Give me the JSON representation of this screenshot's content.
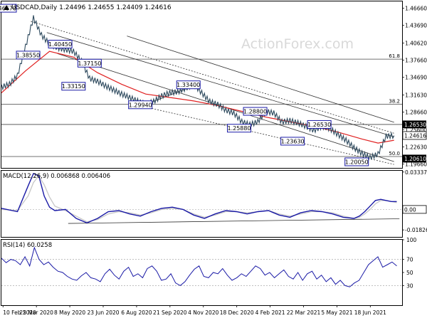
{
  "chart_data": {
    "type": "line",
    "title": "USDCAD,Daily",
    "ohlc": {
      "open": "1.24496",
      "high": "1.24655",
      "low": "1.24409",
      "close": "1.24616"
    },
    "watermark": "ActionForex.com",
    "price_panel": {
      "ylim": [
        1.19,
        1.4785
      ],
      "ticks": [
        "1.46660",
        "1.43690",
        "1.40620",
        "1.37660",
        "1.34690",
        "1.31630",
        "1.28660",
        "1.25600",
        "1.22630",
        "1.19660"
      ],
      "current_price": "1.24616",
      "highlighted_levels": [
        "1.26530",
        "1.20610"
      ],
      "fib_levels": [
        {
          "label": "61.8",
          "value": 1.3785
        },
        {
          "label": "38.2",
          "value": 1.3005
        },
        {
          "label": "50.0",
          "value": 1.2097
        }
      ],
      "horizontal_level": 1.2653,
      "annotations": [
        {
          "label": "1.46670",
          "x": 0.6,
          "y": 1.4667
        },
        {
          "label": "1.38550",
          "x": 5.0,
          "y": 1.3855
        },
        {
          "label": "1.40450",
          "x": 11.0,
          "y": 1.4045
        },
        {
          "label": "1.37150",
          "x": 16.5,
          "y": 1.3715
        },
        {
          "label": "1.33150",
          "x": 13.5,
          "y": 1.3315
        },
        {
          "label": "1.33400",
          "x": 35.0,
          "y": 1.334
        },
        {
          "label": "1.29940",
          "x": 26.0,
          "y": 1.2994
        },
        {
          "label": "1.28800",
          "x": 47.5,
          "y": 1.288
        },
        {
          "label": "1.25880",
          "x": 44.5,
          "y": 1.2588
        },
        {
          "label": "1.26530",
          "x": 59.5,
          "y": 1.2653
        },
        {
          "label": "1.23630",
          "x": 54.5,
          "y": 1.2363
        },
        {
          "label": "1.20050",
          "x": 66.5,
          "y": 1.2005
        }
      ]
    },
    "x_axis": {
      "labels": [
        "10 Feb 2020",
        "25 Mar 2020",
        "8 May 2020",
        "23 Jun 2020",
        "6 Aug 2020",
        "21 Sep 2020",
        "4 Nov 2020",
        "18 Dec 2020",
        "4 Feb 2021",
        "22 Mar 2021",
        "5 May 2021",
        "18 Jun 2021"
      ]
    },
    "series": [
      {
        "name": "USDCAD",
        "color": "#2e4a5e",
        "x": [
          0,
          1.5,
          3,
          4.5,
          6,
          7.5,
          9,
          10.5,
          12,
          13.5,
          15,
          16.5,
          18,
          19.5,
          21,
          22.5,
          24,
          25.5,
          27,
          28.5,
          30,
          31.5,
          33,
          34.5,
          36,
          37.5,
          39,
          40.5,
          42,
          43.5,
          45,
          46.5,
          48,
          49.5,
          51,
          52.5,
          54,
          55.5,
          57,
          58.5,
          60,
          61.5,
          63,
          64.5,
          66,
          67.5,
          69,
          70.5,
          72,
          73.5
        ],
        "values": [
          1.33,
          1.335,
          1.35,
          1.4,
          1.45,
          1.42,
          1.405,
          1.398,
          1.395,
          1.392,
          1.375,
          1.345,
          1.34,
          1.332,
          1.325,
          1.318,
          1.312,
          1.306,
          1.3,
          1.305,
          1.315,
          1.32,
          1.322,
          1.328,
          1.335,
          1.32,
          1.305,
          1.3,
          1.29,
          1.285,
          1.27,
          1.265,
          1.27,
          1.288,
          1.285,
          1.27,
          1.272,
          1.268,
          1.262,
          1.255,
          1.262,
          1.258,
          1.248,
          1.238,
          1.225,
          1.215,
          1.208,
          1.214,
          1.245,
          1.246
        ]
      },
      {
        "name": "Moving average",
        "color": "#e02020",
        "x": [
          0,
          4.5,
          9,
          13.5,
          18,
          22.5,
          27,
          31.5,
          36,
          40.5,
          45,
          49.5,
          54,
          58.5,
          63,
          67.5,
          70.5,
          73.5
        ],
        "values": [
          1.32,
          1.358,
          1.392,
          1.382,
          1.355,
          1.335,
          1.318,
          1.312,
          1.306,
          1.298,
          1.288,
          1.278,
          1.27,
          1.262,
          1.252,
          1.24,
          1.233,
          1.238
        ]
      }
    ],
    "trend_lines": [
      {
        "style": "dashed",
        "from": [
          5.5,
          1.444
        ],
        "to": [
          73.5,
          1.25
        ]
      },
      {
        "style": "solid",
        "from": [
          8.5,
          1.4245
        ],
        "to": [
          73.5,
          1.244
        ]
      },
      {
        "style": "solid",
        "from": [
          10.5,
          1.388
        ],
        "to": [
          73.5,
          1.201
        ]
      },
      {
        "style": "solid",
        "from": [
          23.5,
          1.4185
        ],
        "to": [
          73.5,
          1.269
        ]
      },
      {
        "style": "dashed",
        "from": [
          24.0,
          1.302
        ],
        "to": [
          73.5,
          1.196
        ]
      },
      {
        "style": "solid",
        "from": [
          27.0,
          1.3
        ],
        "to": [
          36.5,
          1.334
        ]
      }
    ],
    "macd_panel": {
      "label": "MACD(12,26,9) 0.006868 0.006406",
      "ylim": [
        -0.0245,
        0.0345
      ],
      "ticks": [
        "0.03337",
        "0.00",
        "-0.018262"
      ],
      "current_highlight": "0.00",
      "macd": {
        "x": [
          0,
          3,
          5,
          6,
          7,
          8,
          9,
          10,
          12,
          14,
          16,
          18,
          20,
          22,
          24,
          26,
          28,
          30,
          32,
          34,
          36,
          38,
          40,
          42,
          44,
          46,
          48,
          50,
          52,
          54,
          56,
          58,
          60,
          62,
          64,
          66,
          67,
          68,
          69,
          70,
          71,
          72,
          73,
          74
        ],
        "values": [
          0.001,
          -0.002,
          0.021,
          0.032,
          0.03,
          0.012,
          0.002,
          -0.001,
          0.0,
          -0.008,
          -0.012,
          -0.008,
          -0.002,
          -0.001,
          -0.004,
          -0.006,
          -0.002,
          0.001,
          0.002,
          0.0,
          -0.005,
          -0.008,
          -0.004,
          -0.001,
          -0.002,
          -0.004,
          -0.002,
          -0.001,
          -0.005,
          -0.007,
          -0.003,
          -0.001,
          -0.002,
          -0.004,
          -0.007,
          -0.008,
          -0.006,
          -0.002,
          0.003,
          0.008,
          0.009,
          0.008,
          0.007,
          0.007
        ]
      },
      "signal": {
        "x": [
          0,
          3,
          5,
          6,
          7,
          8,
          9,
          10,
          12,
          14,
          16,
          18,
          20,
          22,
          24,
          26,
          28,
          30,
          32,
          34,
          36,
          38,
          40,
          42,
          44,
          46,
          48,
          50,
          52,
          54,
          56,
          58,
          60,
          62,
          64,
          66,
          67,
          68,
          69,
          70,
          71,
          72,
          73,
          74
        ],
        "values": [
          0.0,
          -0.001,
          0.012,
          0.024,
          0.03,
          0.022,
          0.011,
          0.003,
          -0.001,
          -0.006,
          -0.011,
          -0.009,
          -0.004,
          -0.002,
          -0.003,
          -0.005,
          -0.003,
          0.0,
          0.001,
          0.0,
          -0.004,
          -0.007,
          -0.005,
          -0.002,
          -0.002,
          -0.003,
          -0.002,
          -0.001,
          -0.004,
          -0.006,
          -0.004,
          -0.002,
          -0.002,
          -0.003,
          -0.006,
          -0.008,
          -0.007,
          -0.004,
          0.0,
          0.005,
          0.008,
          0.008,
          0.007,
          0.006
        ]
      },
      "trend_line": {
        "from": [
          12.5,
          -0.0125
        ],
        "to": [
          74.5,
          -0.0083
        ]
      }
    },
    "rsi_panel": {
      "label": "RSI(14) 60.0258",
      "ylim": [
        0,
        100
      ],
      "ticks": [
        "100",
        "70",
        "50",
        "30"
      ],
      "levels": [
        70,
        30
      ],
      "values": [
        72,
        65,
        70,
        68,
        62,
        74,
        60,
        88,
        70,
        62,
        66,
        58,
        52,
        50,
        44,
        40,
        38,
        45,
        50,
        42,
        40,
        36,
        48,
        55,
        46,
        40,
        52,
        58,
        44,
        48,
        42,
        56,
        60,
        52,
        38,
        40,
        48,
        34,
        30,
        36,
        46,
        55,
        60,
        44,
        42,
        50,
        48,
        56,
        46,
        38,
        42,
        48,
        44,
        52,
        60,
        56,
        46,
        50,
        42,
        48,
        54,
        44,
        40,
        50,
        38,
        48,
        52,
        40,
        46,
        36,
        42,
        32,
        38,
        30,
        28,
        34,
        38,
        50,
        62,
        68,
        74,
        58,
        62,
        66,
        60
      ]
    }
  }
}
